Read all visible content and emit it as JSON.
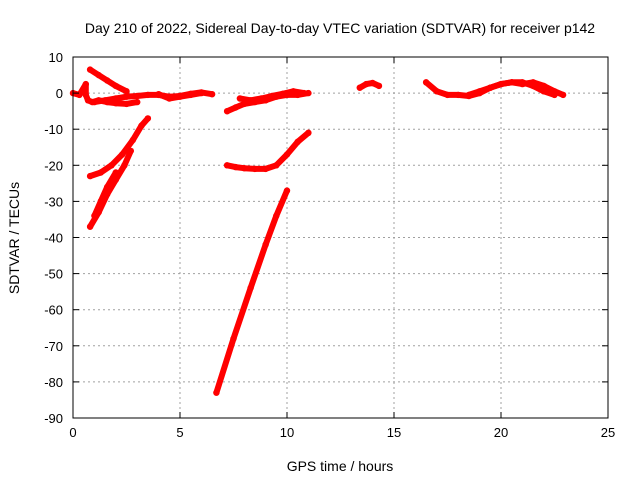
{
  "chart_data": {
    "type": "scatter",
    "title": "Day 210 of 2022, Sidereal Day-to-day VTEC variation (SDTVAR) for receiver p142",
    "xlabel": "GPS time / hours",
    "ylabel": "SDTVAR / TECUs",
    "xlim": [
      0,
      25
    ],
    "ylim": [
      -90,
      10
    ],
    "xticks": [
      0,
      5,
      10,
      15,
      20,
      25
    ],
    "yticks": [
      10,
      0,
      -10,
      -20,
      -30,
      -40,
      -50,
      -60,
      -70,
      -80,
      -90
    ],
    "grid": true,
    "color": "#ff0000",
    "series": [
      {
        "x": [
          0.0,
          0.3,
          0.6,
          0.6,
          0.7,
          0.9,
          1.2,
          1.6,
          2.0,
          2.5,
          3.0
        ],
        "y": [
          0.0,
          -0.5,
          2.5,
          -0.5,
          -2.0,
          -2.5,
          -2.0,
          -2.5,
          -2.8,
          -3.0,
          -2.5
        ]
      },
      {
        "x": [
          0.8,
          1.2,
          1.6,
          2.0,
          2.5
        ],
        "y": [
          6.5,
          5.0,
          3.5,
          2.0,
          0.5
        ]
      },
      {
        "x": [
          1.0,
          1.5,
          2.0,
          2.5,
          3.0,
          3.5,
          4.0,
          4.5,
          5.0,
          5.5,
          6.0,
          6.5
        ],
        "y": [
          -2.5,
          -2.0,
          -1.5,
          -1.0,
          -0.8,
          -0.5,
          -0.5,
          -1.0,
          -0.8,
          -0.2,
          0.2,
          -0.3
        ]
      },
      {
        "x": [
          4.0,
          4.5,
          5.0,
          5.5,
          6.0
        ],
        "y": [
          -0.3,
          -1.5,
          -1.0,
          -0.5,
          0.0
        ]
      },
      {
        "x": [
          0.8,
          1.3,
          1.8,
          2.3,
          2.8,
          3.2,
          3.5
        ],
        "y": [
          -23,
          -22,
          -20,
          -17,
          -13,
          -9,
          -7
        ]
      },
      {
        "x": [
          0.8,
          1.2,
          1.6,
          2.0,
          2.4,
          2.7
        ],
        "y": [
          -37,
          -33,
          -28,
          -24,
          -20,
          -16
        ]
      },
      {
        "x": [
          1.0,
          1.3,
          1.6,
          2.0
        ],
        "y": [
          -34,
          -30,
          -26,
          -22
        ]
      },
      {
        "x": [
          6.7,
          7.5,
          8.3,
          9.0,
          9.5,
          10.0
        ],
        "y": [
          -83,
          -68,
          -54,
          -42,
          -34,
          -27
        ]
      },
      {
        "x": [
          7.2,
          7.6,
          8.0,
          8.5,
          9.0,
          9.5,
          10.0,
          10.5,
          11.0
        ],
        "y": [
          -20.0,
          -20.5,
          -20.8,
          -21.0,
          -21.0,
          -20.0,
          -17.0,
          -13.5,
          -11.0
        ]
      },
      {
        "x": [
          7.2,
          7.6,
          8.0,
          8.5,
          9.0,
          9.5,
          10.0,
          10.5,
          11.0
        ],
        "y": [
          -5.0,
          -4.0,
          -3.0,
          -2.5,
          -2.0,
          -1.0,
          -0.5,
          -0.5,
          0.0
        ]
      },
      {
        "x": [
          7.8,
          8.3,
          8.8,
          9.3,
          9.8,
          10.3,
          10.8
        ],
        "y": [
          -1.5,
          -2.0,
          -1.5,
          -0.8,
          -0.2,
          0.5,
          0.0
        ]
      },
      {
        "x": [
          13.4,
          13.7,
          14.0,
          14.3
        ],
        "y": [
          1.5,
          2.5,
          2.8,
          2.0
        ]
      },
      {
        "x": [
          16.5,
          17.0,
          17.5,
          18.0,
          18.5,
          19.0,
          19.5,
          20.0,
          20.5,
          21.0,
          21.5,
          22.0,
          22.5,
          22.9
        ],
        "y": [
          3.0,
          0.5,
          -0.5,
          -0.5,
          -0.8,
          0.0,
          1.5,
          2.5,
          3.0,
          2.5,
          3.0,
          2.0,
          0.5,
          -0.5
        ]
      },
      {
        "x": [
          18.5,
          19.0,
          19.5,
          20.0,
          20.5,
          21.0,
          21.5,
          22.0,
          22.5
        ],
        "y": [
          -0.5,
          0.5,
          1.5,
          2.5,
          3.0,
          3.0,
          2.0,
          0.5,
          -0.5
        ]
      }
    ]
  }
}
